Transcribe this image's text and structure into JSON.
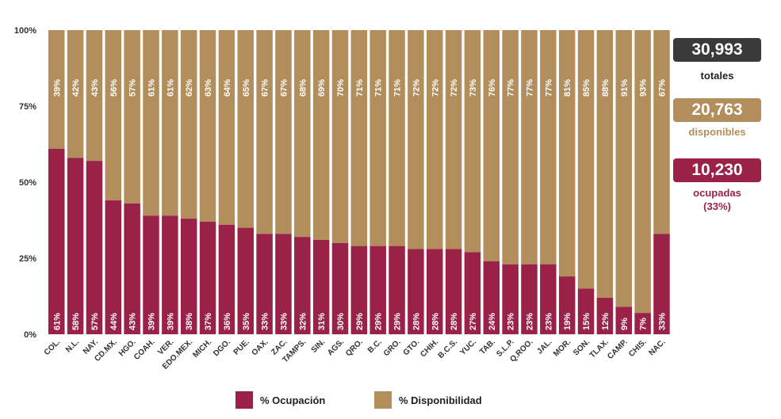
{
  "colors": {
    "occupied": "#9a2148",
    "available": "#b38e5d",
    "total_box": "#3a3a3a"
  },
  "chart_data": {
    "type": "bar",
    "stacked": true,
    "categories": [
      "COL.",
      "N.L.",
      "NAY.",
      "CD.MX.",
      "HGO.",
      "COAH.",
      "VER.",
      "EDO.MEX.",
      "MICH.",
      "DGO.",
      "PUE.",
      "OAX.",
      "ZAC.",
      "TAMPS.",
      "SIN.",
      "AGS.",
      "QRO.",
      "B.C.",
      "GRO.",
      "GTO.",
      "CHIH.",
      "B.C.S.",
      "YUC.",
      "TAB.",
      "S.L.P.",
      "Q.ROO.",
      "JAL.",
      "MOR.",
      "SON.",
      "TLAX.",
      "CAMP.",
      "CHIS.",
      "NAC."
    ],
    "series": [
      {
        "name": "% Ocupación",
        "values": [
          61,
          58,
          57,
          44,
          43,
          39,
          39,
          38,
          37,
          36,
          35,
          33,
          33,
          32,
          31,
          30,
          29,
          29,
          29,
          28,
          28,
          28,
          27,
          24,
          23,
          23,
          23,
          19,
          15,
          12,
          9,
          7,
          33
        ]
      },
      {
        "name": "% Disponibilidad",
        "values": [
          39,
          42,
          43,
          56,
          57,
          61,
          61,
          62,
          63,
          64,
          65,
          67,
          67,
          68,
          69,
          70,
          71,
          71,
          71,
          72,
          72,
          72,
          73,
          76,
          77,
          77,
          77,
          81,
          85,
          88,
          91,
          93,
          67
        ]
      }
    ],
    "ylim": [
      0,
      100
    ],
    "yticks": [
      "0%",
      "25%",
      "50%",
      "75%",
      "100%"
    ],
    "legend_position": "bottom"
  },
  "summary": {
    "total": {
      "value": "30,993",
      "label": "totales"
    },
    "available": {
      "value": "20,763",
      "label": "disponibles"
    },
    "occupied": {
      "value": "10,230",
      "label": "ocupadas",
      "pct": "(33%)"
    }
  },
  "legend": {
    "occupied_label": "% Ocupación",
    "available_label": "% Disponibilidad"
  }
}
